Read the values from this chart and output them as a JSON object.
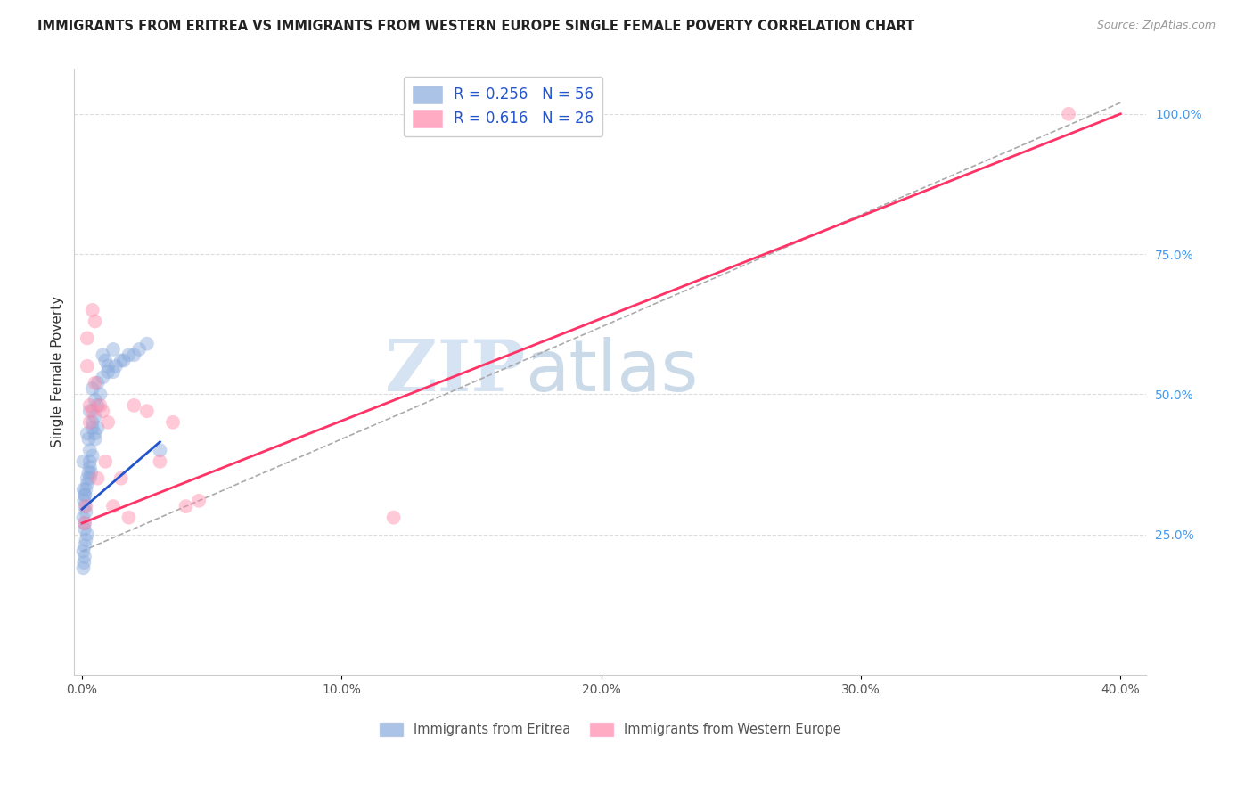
{
  "title": "IMMIGRANTS FROM ERITREA VS IMMIGRANTS FROM WESTERN EUROPE SINGLE FEMALE POVERTY CORRELATION CHART",
  "source": "Source: ZipAtlas.com",
  "ylabel": "Single Female Poverty",
  "x_tick_labels": [
    "0.0%",
    "10.0%",
    "20.0%",
    "30.0%",
    "40.0%"
  ],
  "x_tick_values": [
    0.0,
    0.1,
    0.2,
    0.3,
    0.4
  ],
  "y_tick_labels": [
    "25.0%",
    "50.0%",
    "75.0%",
    "100.0%"
  ],
  "y_tick_values": [
    0.25,
    0.5,
    0.75,
    1.0
  ],
  "xlim": [
    -0.003,
    0.41
  ],
  "ylim": [
    0.0,
    1.08
  ],
  "legend_label1": "R = 0.256   N = 56",
  "legend_label2": "R = 0.616   N = 26",
  "legend_bottom1": "Immigrants from Eritrea",
  "legend_bottom2": "Immigrants from Western Europe",
  "color_eritrea": "#88AADD",
  "color_western": "#FF88AA",
  "color_line_eritrea": "#2255CC",
  "color_line_western": "#FF3366",
  "watermark_zip": "ZIP",
  "watermark_atlas": "atlas",
  "eritrea_x": [
    0.0005,
    0.001,
    0.001,
    0.0015,
    0.001,
    0.0008,
    0.0012,
    0.0006,
    0.0005,
    0.001,
    0.0015,
    0.002,
    0.001,
    0.0008,
    0.0005,
    0.002,
    0.0025,
    0.003,
    0.002,
    0.0015,
    0.001,
    0.0005,
    0.003,
    0.0025,
    0.002,
    0.003,
    0.004,
    0.003,
    0.0035,
    0.004,
    0.005,
    0.004,
    0.003,
    0.005,
    0.006,
    0.005,
    0.007,
    0.006,
    0.008,
    0.006,
    0.005,
    0.004,
    0.01,
    0.008,
    0.009,
    0.012,
    0.01,
    0.015,
    0.013,
    0.012,
    0.018,
    0.016,
    0.02,
    0.022,
    0.025,
    0.03
  ],
  "eritrea_y": [
    0.28,
    0.3,
    0.27,
    0.29,
    0.26,
    0.31,
    0.32,
    0.33,
    0.22,
    0.23,
    0.24,
    0.25,
    0.21,
    0.2,
    0.19,
    0.35,
    0.36,
    0.37,
    0.34,
    0.33,
    0.32,
    0.38,
    0.4,
    0.42,
    0.43,
    0.38,
    0.39,
    0.35,
    0.36,
    0.45,
    0.46,
    0.44,
    0.47,
    0.43,
    0.44,
    0.42,
    0.5,
    0.52,
    0.53,
    0.48,
    0.49,
    0.51,
    0.55,
    0.57,
    0.56,
    0.58,
    0.54,
    0.56,
    0.55,
    0.54,
    0.57,
    0.56,
    0.57,
    0.58,
    0.59,
    0.4
  ],
  "western_x": [
    0.001,
    0.0015,
    0.002,
    0.002,
    0.003,
    0.003,
    0.004,
    0.004,
    0.005,
    0.005,
    0.006,
    0.007,
    0.008,
    0.009,
    0.01,
    0.012,
    0.015,
    0.018,
    0.02,
    0.025,
    0.03,
    0.035,
    0.04,
    0.045,
    0.12,
    0.38
  ],
  "western_y": [
    0.27,
    0.3,
    0.55,
    0.6,
    0.45,
    0.48,
    0.47,
    0.65,
    0.63,
    0.52,
    0.35,
    0.48,
    0.47,
    0.38,
    0.45,
    0.3,
    0.35,
    0.28,
    0.48,
    0.47,
    0.38,
    0.45,
    0.3,
    0.31,
    0.28,
    1.0
  ],
  "eritrea_line_x": [
    0.0,
    0.03
  ],
  "eritrea_line_y": [
    0.295,
    0.415
  ],
  "western_line_x": [
    0.0,
    0.4
  ],
  "western_line_y": [
    0.27,
    1.0
  ],
  "ref_line_x": [
    0.0,
    0.4
  ],
  "ref_line_y": [
    0.22,
    1.02
  ]
}
